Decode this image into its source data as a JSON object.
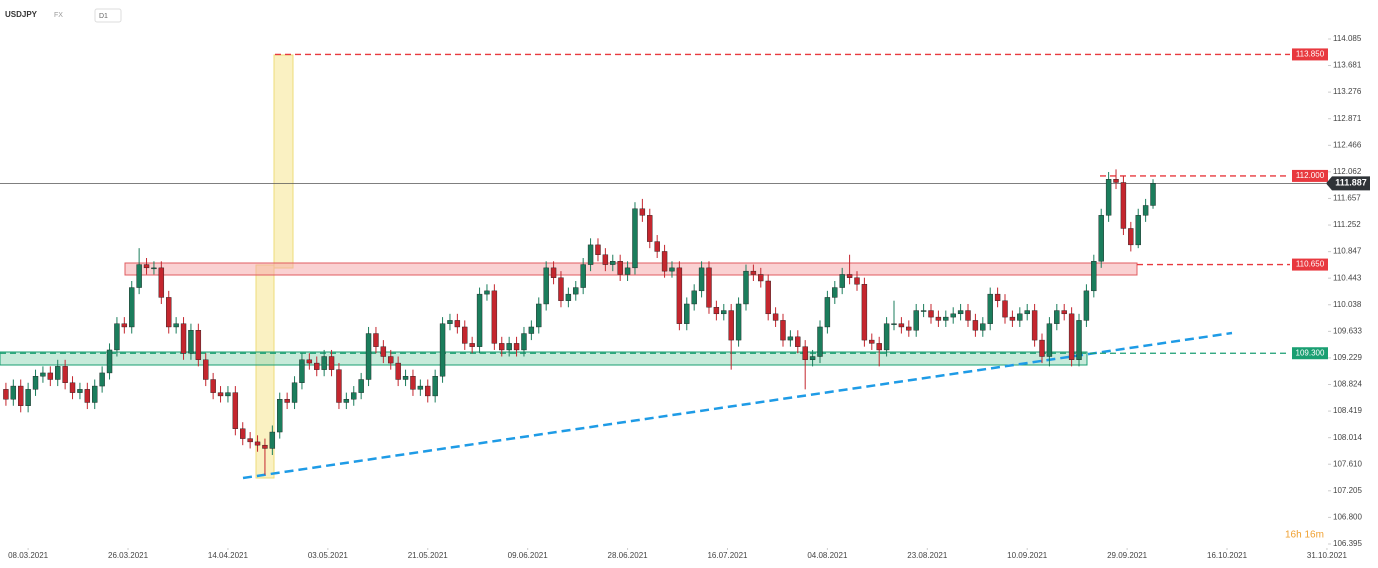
{
  "chart_data": {
    "type": "candlestick",
    "title": "USDJPY",
    "market": "FX",
    "timeframe": "D1",
    "up_color": "#1b7d5c",
    "down_color": "#c4262e",
    "open": [
      108.75,
      108.6,
      108.8,
      108.5,
      108.75,
      108.95,
      109.0,
      108.9,
      109.1,
      108.85,
      108.7,
      108.75,
      108.55,
      108.8,
      109.0,
      109.35,
      109.75,
      109.7,
      110.3,
      110.65,
      110.6,
      110.6,
      110.15,
      109.7,
      109.75,
      109.3,
      109.65,
      109.2,
      108.9,
      108.7,
      108.65,
      108.7,
      108.15,
      108.0,
      107.95,
      107.9,
      107.85,
      108.1,
      108.6,
      108.55,
      108.85,
      109.2,
      109.15,
      109.05,
      109.25,
      109.05,
      108.55,
      108.6,
      108.7,
      108.9,
      109.6,
      109.4,
      109.25,
      109.15,
      108.9,
      108.95,
      108.75,
      108.8,
      108.65,
      108.95,
      109.75,
      109.8,
      109.7,
      109.45,
      109.4,
      110.2,
      110.25,
      109.45,
      109.35,
      109.45,
      109.35,
      109.6,
      109.7,
      110.05,
      110.6,
      110.45,
      110.1,
      110.2,
      110.3,
      110.65,
      110.95,
      110.8,
      110.65,
      110.7,
      110.5,
      110.6,
      111.5,
      111.4,
      111.0,
      110.85,
      110.55,
      110.6,
      109.75,
      110.05,
      110.25,
      110.6,
      110.0,
      109.9,
      109.95,
      109.5,
      110.05,
      110.55,
      110.5,
      110.4,
      109.9,
      109.8,
      109.5,
      109.55,
      109.4,
      109.2,
      109.25,
      109.7,
      110.15,
      110.3,
      110.5,
      110.45,
      110.35,
      109.5,
      109.45,
      109.35,
      109.75,
      109.75,
      109.7,
      109.65,
      109.95,
      109.95,
      109.85,
      109.8,
      109.85,
      109.9,
      109.95,
      109.8,
      109.65,
      109.75,
      110.2,
      110.1,
      109.85,
      109.8,
      109.9,
      109.95,
      109.5,
      109.25,
      109.75,
      109.95,
      109.9,
      109.2,
      109.8,
      110.25,
      110.7,
      111.4,
      111.95,
      111.9,
      111.2,
      110.95,
      111.4,
      111.55
    ],
    "high": [
      108.85,
      108.9,
      108.9,
      108.85,
      109.05,
      109.1,
      109.1,
      109.2,
      109.2,
      108.95,
      108.85,
      108.85,
      108.9,
      109.1,
      109.45,
      109.85,
      109.85,
      110.4,
      110.9,
      110.75,
      110.7,
      110.7,
      110.25,
      109.85,
      109.85,
      109.75,
      109.75,
      109.3,
      109.0,
      108.8,
      108.8,
      108.8,
      108.25,
      108.1,
      108.05,
      108.0,
      108.2,
      108.7,
      108.7,
      108.95,
      109.3,
      109.3,
      109.25,
      109.35,
      109.35,
      109.15,
      108.7,
      108.8,
      109.0,
      109.7,
      109.7,
      109.5,
      109.35,
      109.25,
      109.05,
      109.05,
      108.9,
      108.9,
      109.05,
      109.85,
      109.9,
      109.9,
      109.8,
      109.55,
      110.3,
      110.35,
      110.35,
      109.55,
      109.55,
      109.55,
      109.7,
      109.8,
      110.15,
      110.7,
      110.7,
      110.55,
      110.3,
      110.4,
      110.75,
      111.05,
      111.05,
      110.9,
      110.8,
      110.8,
      110.7,
      111.6,
      111.65,
      111.5,
      111.1,
      110.95,
      110.7,
      110.7,
      110.15,
      110.35,
      110.7,
      110.7,
      110.1,
      110.05,
      110.05,
      110.15,
      110.65,
      110.65,
      110.6,
      110.5,
      110.0,
      109.9,
      109.65,
      109.65,
      109.5,
      109.35,
      109.8,
      110.25,
      110.4,
      110.6,
      110.8,
      110.55,
      110.45,
      109.6,
      109.55,
      109.85,
      110.1,
      109.85,
      109.8,
      110.05,
      110.05,
      110.05,
      109.95,
      109.95,
      110.0,
      110.05,
      110.05,
      109.9,
      109.85,
      110.3,
      110.3,
      110.2,
      109.95,
      110.0,
      110.05,
      110.05,
      109.6,
      109.85,
      110.05,
      110.05,
      110.0,
      109.9,
      110.35,
      110.8,
      111.5,
      112.06,
      112.1,
      112.0,
      111.3,
      111.5,
      111.65,
      111.95
    ],
    "low": [
      108.5,
      108.5,
      108.4,
      108.4,
      108.65,
      108.85,
      108.8,
      108.8,
      108.75,
      108.6,
      108.6,
      108.45,
      108.45,
      108.7,
      108.9,
      109.25,
      109.6,
      109.6,
      110.2,
      110.5,
      110.5,
      110.05,
      109.6,
      109.6,
      109.2,
      109.2,
      109.1,
      108.8,
      108.6,
      108.55,
      108.55,
      108.05,
      107.9,
      107.85,
      107.8,
      107.45,
      107.75,
      108.0,
      108.45,
      108.45,
      108.75,
      109.05,
      108.95,
      108.95,
      108.95,
      108.45,
      108.45,
      108.5,
      108.6,
      108.8,
      109.3,
      109.15,
      109.05,
      108.8,
      108.8,
      108.65,
      108.65,
      108.55,
      108.55,
      108.85,
      109.65,
      109.6,
      109.35,
      109.3,
      109.3,
      110.1,
      109.35,
      109.25,
      109.25,
      109.25,
      109.25,
      109.5,
      109.6,
      109.95,
      110.35,
      110.0,
      110.0,
      110.1,
      110.2,
      110.55,
      110.7,
      110.55,
      110.55,
      110.4,
      110.4,
      110.5,
      111.3,
      110.9,
      110.75,
      110.45,
      110.45,
      109.65,
      109.65,
      109.95,
      110.15,
      109.9,
      109.8,
      109.8,
      109.05,
      109.4,
      109.95,
      110.4,
      110.3,
      109.8,
      109.7,
      109.4,
      109.4,
      109.3,
      108.75,
      109.1,
      109.15,
      109.6,
      110.05,
      110.2,
      110.35,
      110.25,
      109.4,
      109.35,
      109.1,
      109.25,
      109.65,
      109.6,
      109.55,
      109.55,
      109.85,
      109.75,
      109.7,
      109.7,
      109.75,
      109.8,
      109.7,
      109.55,
      109.55,
      109.65,
      110.0,
      109.75,
      109.7,
      109.7,
      109.8,
      109.4,
      109.15,
      109.1,
      109.65,
      109.8,
      109.1,
      109.1,
      109.7,
      110.15,
      110.6,
      111.3,
      111.8,
      111.1,
      110.85,
      110.9,
      111.3,
      111.5
    ],
    "close": [
      108.6,
      108.8,
      108.5,
      108.75,
      108.95,
      109.0,
      108.9,
      109.1,
      108.85,
      108.7,
      108.75,
      108.55,
      108.8,
      109.0,
      109.35,
      109.75,
      109.7,
      110.3,
      110.65,
      110.6,
      110.6,
      110.15,
      109.7,
      109.75,
      109.3,
      109.65,
      109.2,
      108.9,
      108.7,
      108.65,
      108.7,
      108.15,
      108.0,
      107.95,
      107.9,
      107.85,
      108.1,
      108.6,
      108.55,
      108.85,
      109.2,
      109.15,
      109.05,
      109.25,
      109.05,
      108.55,
      108.6,
      108.7,
      108.9,
      109.6,
      109.4,
      109.25,
      109.15,
      108.9,
      108.95,
      108.75,
      108.8,
      108.65,
      108.95,
      109.75,
      109.8,
      109.7,
      109.45,
      109.4,
      110.2,
      110.25,
      109.45,
      109.35,
      109.45,
      109.35,
      109.6,
      109.7,
      110.05,
      110.6,
      110.45,
      110.1,
      110.2,
      110.3,
      110.65,
      110.95,
      110.8,
      110.65,
      110.7,
      110.5,
      110.6,
      111.5,
      111.4,
      111.0,
      110.85,
      110.55,
      110.6,
      109.75,
      110.05,
      110.25,
      110.6,
      110.0,
      109.9,
      109.95,
      109.5,
      110.05,
      110.55,
      110.5,
      110.4,
      109.9,
      109.8,
      109.5,
      109.55,
      109.4,
      109.2,
      109.25,
      109.7,
      110.15,
      110.3,
      110.5,
      110.45,
      110.35,
      109.5,
      109.45,
      109.35,
      109.75,
      109.75,
      109.7,
      109.65,
      109.95,
      109.95,
      109.85,
      109.8,
      109.85,
      109.9,
      109.95,
      109.8,
      109.65,
      109.75,
      110.2,
      110.1,
      109.85,
      109.8,
      109.9,
      109.95,
      109.5,
      109.25,
      109.75,
      109.95,
      109.9,
      109.2,
      109.8,
      110.25,
      110.7,
      111.4,
      111.95,
      111.9,
      111.2,
      110.95,
      111.4,
      111.55,
      111.887
    ],
    "xlim": [
      -0.8,
      185.4
    ],
    "xticks": [
      {
        "value": 3,
        "label": "08.03.2021"
      },
      {
        "value": 16.5,
        "label": "26.03.2021"
      },
      {
        "value": 30,
        "label": "14.04.2021"
      },
      {
        "value": 43.5,
        "label": "03.05.2021"
      },
      {
        "value": 57,
        "label": "21.05.2021"
      },
      {
        "value": 70.5,
        "label": "09.06.2021"
      },
      {
        "value": 84,
        "label": "28.06.2021"
      },
      {
        "value": 97.5,
        "label": "16.07.2021"
      },
      {
        "value": 111,
        "label": "04.08.2021"
      },
      {
        "value": 124.5,
        "label": "23.08.2021"
      },
      {
        "value": 138,
        "label": "10.09.2021"
      },
      {
        "value": 151.5,
        "label": "29.09.2021"
      },
      {
        "value": 165,
        "label": "16.10.2021"
      },
      {
        "value": 178.5,
        "label": "31.10.2021"
      }
    ],
    "ylim": [
      106.395,
      114.085
    ],
    "yticks": [
      114.085,
      113.681,
      113.276,
      112.871,
      112.466,
      112.062,
      111.657,
      111.252,
      110.847,
      110.443,
      110.038,
      109.633,
      109.229,
      108.824,
      108.419,
      108.014,
      {
        "value": 107.61,
        "label": "107.610"
      },
      107.205,
      {
        "value": 106.8,
        "label": "106.800"
      },
      106.395
    ],
    "levels": [
      {
        "value": 113.85,
        "label": "113.850",
        "color": "#e8393f"
      },
      {
        "value": 112,
        "label": "112.000",
        "color": "#e8393f"
      },
      {
        "value": 110.65,
        "label": "110.650",
        "color": "#e8393f"
      },
      {
        "value": 109.3,
        "label": "109.300",
        "color": "#1a9f72"
      }
    ],
    "last_price": 111.887,
    "countdown": "16h 16m"
  }
}
